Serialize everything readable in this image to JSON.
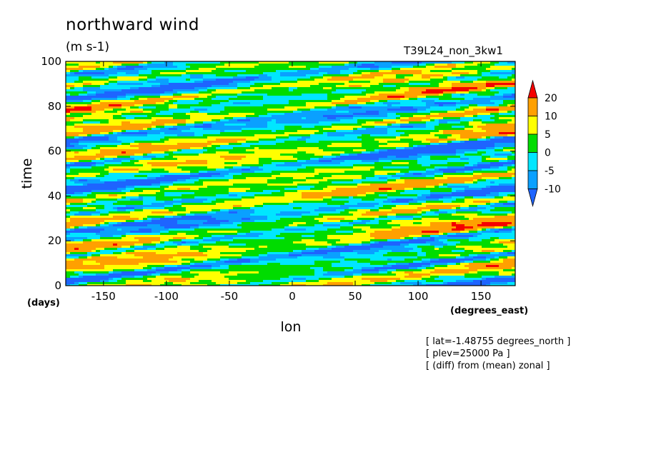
{
  "chart_data": {
    "type": "heatmap",
    "title": "northward wind",
    "units": "(m s-1)",
    "experiment": "T39L24_non_3kw1",
    "xlabel": "lon",
    "xunits": "(degrees_east)",
    "ylabel": "time",
    "yunits": "(days)",
    "xlim": [
      -180,
      177.2
    ],
    "ylim": [
      0,
      100
    ],
    "xticks": [
      -150,
      -100,
      -50,
      0,
      50,
      100,
      150
    ],
    "yticks": [
      0,
      20,
      40,
      60,
      80,
      100
    ],
    "colorbar": {
      "levels": [
        -10,
        -5,
        0,
        5,
        10,
        20
      ],
      "colors": [
        "#1e64ff",
        "#0aa0ff",
        "#00e6ff",
        "#00dc00",
        "#ffff00",
        "#ffa000",
        "#f50000"
      ],
      "extend": "both",
      "tick_labels": [
        "20",
        "10",
        "5",
        "0",
        "-5",
        "-10"
      ]
    },
    "annotations": [
      "[ lat=-1.48755 degrees_north ]",
      "[ plev=25000 Pa ]",
      "[ (diff) from (mean) zonal ]"
    ]
  }
}
